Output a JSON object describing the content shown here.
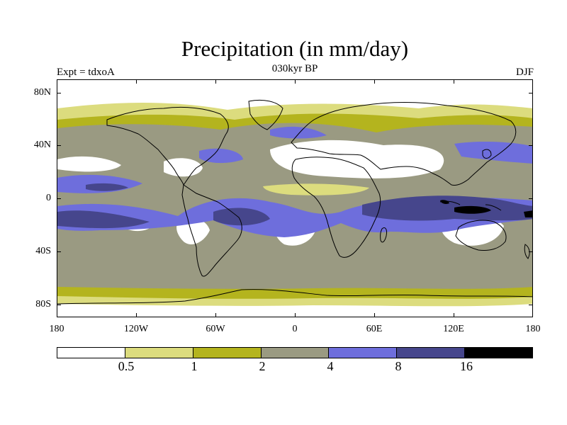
{
  "header": {
    "title": "Precipitation (in mm/day)",
    "experiment": "Expt = tdxoA",
    "period": "030kyr BP",
    "season": "DJF"
  },
  "axes": {
    "y_ticks": [
      "80N",
      "40N",
      "0",
      "40S",
      "80S"
    ],
    "x_ticks": [
      "180",
      "120W",
      "60W",
      "0",
      "60E",
      "120E",
      "180"
    ]
  },
  "legend": {
    "levels": [
      "0.5",
      "1",
      "2",
      "4",
      "8",
      "16"
    ],
    "colors": [
      "#ffffff",
      "#dcdc7e",
      "#b4b41e",
      "#9a9a82",
      "#6e6edc",
      "#46468c",
      "#000000"
    ]
  },
  "map": {
    "projection": "cylindrical-equidistant",
    "lon_range": [
      -180,
      180
    ],
    "lat_range": [
      -90,
      90
    ],
    "field": "precipitation",
    "units": "mm/day"
  }
}
